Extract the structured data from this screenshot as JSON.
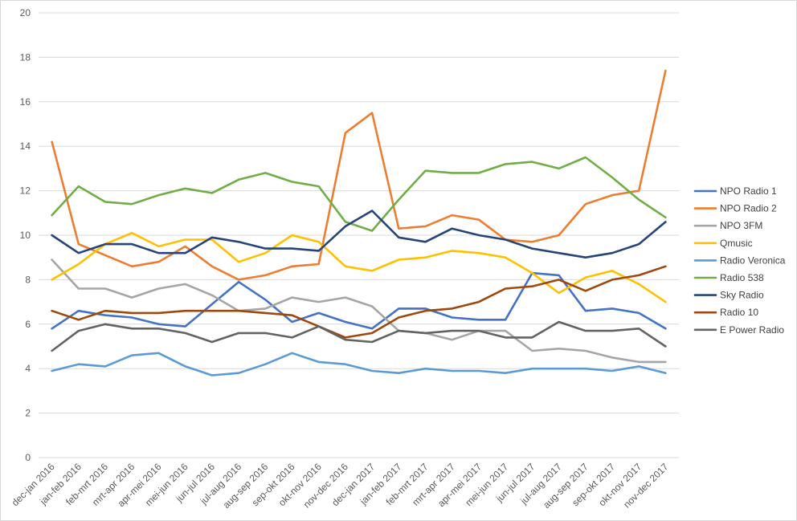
{
  "chart_data": {
    "type": "line",
    "title": "",
    "xlabel": "",
    "ylabel": "",
    "ylim": [
      0,
      20
    ],
    "yticks": [
      0,
      2,
      4,
      6,
      8,
      10,
      12,
      14,
      16,
      18,
      20
    ],
    "grid": "horizontal",
    "legend_position": "right",
    "categories": [
      "dec-jan 2016",
      "jan-feb 2016",
      "feb-mrt 2016",
      "mrt-apr 2016",
      "apr-mei 2016",
      "mei-jun 2016",
      "jun-jul 2016",
      "jul-aug 2016",
      "aug-sep 2016",
      "sep-okt 2016",
      "okt-nov 2016",
      "nov-dec 2016",
      "dec-jan 2017",
      "jan-feb 2017",
      "feb-mrt 2017",
      "mrt-apr 2017",
      "apr-mei 2017",
      "mei-jun 2017",
      "jun-jul 2017",
      "jul-aug 2017",
      "aug-sep 2017",
      "sep-okt 2017",
      "okt-nov 2017",
      "nov-dec 2017"
    ],
    "series": [
      {
        "name": "NPO Radio 1",
        "color": "#4472c4",
        "values": [
          5.8,
          6.6,
          6.4,
          6.3,
          6.0,
          5.9,
          6.9,
          7.9,
          7.1,
          6.1,
          6.5,
          6.1,
          5.8,
          6.7,
          6.7,
          6.3,
          6.2,
          6.2,
          8.3,
          8.2,
          6.6,
          6.7,
          6.5,
          5.8
        ]
      },
      {
        "name": "NPO Radio 2",
        "color": "#ed7d31",
        "values": [
          14.2,
          9.6,
          9.1,
          8.6,
          8.8,
          9.5,
          8.6,
          8.0,
          8.2,
          8.6,
          8.7,
          14.6,
          15.5,
          10.3,
          10.4,
          10.9,
          10.7,
          9.8,
          9.7,
          10.0,
          11.4,
          11.8,
          12.0,
          17.4
        ]
      },
      {
        "name": "NPO 3FM",
        "color": "#a5a5a5",
        "values": [
          8.9,
          7.6,
          7.6,
          7.2,
          7.6,
          7.8,
          7.3,
          6.6,
          6.7,
          7.2,
          7.0,
          7.2,
          6.8,
          5.7,
          5.6,
          5.3,
          5.7,
          5.7,
          4.8,
          4.9,
          4.8,
          4.5,
          4.3,
          4.3
        ]
      },
      {
        "name": "Qmusic",
        "color": "#ffc000",
        "values": [
          8.0,
          8.7,
          9.6,
          10.1,
          9.5,
          9.8,
          9.8,
          8.8,
          9.2,
          10.0,
          9.7,
          8.6,
          8.4,
          8.9,
          9.0,
          9.3,
          9.2,
          9.0,
          8.3,
          7.4,
          8.1,
          8.4,
          7.8,
          7.0
        ]
      },
      {
        "name": "Radio Veronica",
        "color": "#5b9bd5",
        "values": [
          3.9,
          4.2,
          4.1,
          4.6,
          4.7,
          4.1,
          3.7,
          3.8,
          4.2,
          4.7,
          4.3,
          4.2,
          3.9,
          3.8,
          4.0,
          3.9,
          3.9,
          3.8,
          4.0,
          4.0,
          4.0,
          3.9,
          4.1,
          3.8
        ]
      },
      {
        "name": "Radio 538",
        "color": "#70ad47",
        "values": [
          10.9,
          12.2,
          11.5,
          11.4,
          11.8,
          12.1,
          11.9,
          12.5,
          12.8,
          12.4,
          12.2,
          10.6,
          10.2,
          11.6,
          12.9,
          12.8,
          12.8,
          13.2,
          13.3,
          13.0,
          13.5,
          12.6,
          11.6,
          10.8
        ]
      },
      {
        "name": "Sky Radio",
        "color": "#264478",
        "values": [
          10.0,
          9.2,
          9.6,
          9.6,
          9.2,
          9.2,
          9.9,
          9.7,
          9.4,
          9.4,
          9.3,
          10.4,
          11.1,
          9.9,
          9.7,
          10.3,
          10.0,
          9.8,
          9.4,
          9.2,
          9.0,
          9.2,
          9.6,
          10.6
        ]
      },
      {
        "name": "Radio 10",
        "color": "#9e480e",
        "values": [
          6.6,
          6.2,
          6.6,
          6.5,
          6.5,
          6.6,
          6.6,
          6.6,
          6.5,
          6.4,
          5.9,
          5.4,
          5.6,
          6.3,
          6.6,
          6.7,
          7.0,
          7.6,
          7.7,
          8.0,
          7.5,
          8.0,
          8.2,
          8.6
        ]
      },
      {
        "name": "E Power Radio",
        "color": "#636363",
        "values": [
          4.8,
          5.7,
          6.0,
          5.8,
          5.8,
          5.6,
          5.2,
          5.6,
          5.6,
          5.4,
          5.9,
          5.3,
          5.2,
          5.7,
          5.6,
          5.7,
          5.7,
          5.4,
          5.4,
          6.1,
          5.7,
          5.7,
          5.8,
          5.0
        ]
      }
    ]
  }
}
